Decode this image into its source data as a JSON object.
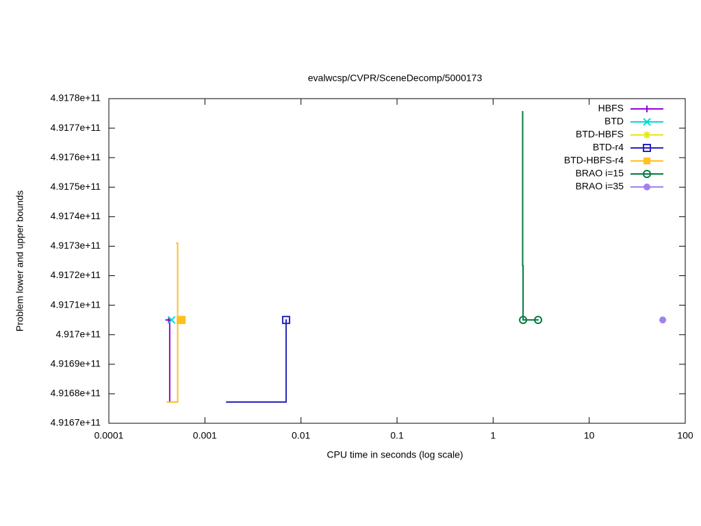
{
  "chart_data": {
    "type": "line",
    "title": "evalwcsp/CVPR/SceneDecomp/5000173",
    "x_label": "CPU time in seconds (log scale)",
    "y_label": "Problem lower and upper bounds",
    "log_x": true,
    "legend": "top-right",
    "xlim": [
      0.0001,
      100
    ],
    "xticks": [
      0.0001,
      0.001,
      0.01,
      0.1,
      1,
      10,
      100
    ],
    "ylim": [
      491670000000,
      491780000000
    ],
    "yticks": [
      {
        "value": 491670000000,
        "label": "4.9167e+11"
      },
      {
        "value": 491680000000,
        "label": "4.9168e+11"
      },
      {
        "value": 491690000000,
        "label": "4.9169e+11"
      },
      {
        "value": 491700000000,
        "label": "4.917e+11"
      },
      {
        "value": 491710000000,
        "label": "4.9171e+11"
      },
      {
        "value": 491720000000,
        "label": "4.9172e+11"
      },
      {
        "value": 491730000000,
        "label": "4.9173e+11"
      },
      {
        "value": 491740000000,
        "label": "4.9174e+11"
      },
      {
        "value": 491750000000,
        "label": "4.9175e+11"
      },
      {
        "value": 491760000000,
        "label": "4.9176e+11"
      },
      {
        "value": 491770000000,
        "label": "4.9177e+11"
      },
      {
        "value": 491780000000,
        "label": "4.9178e+11"
      }
    ],
    "series": [
      {
        "name": "HBFS",
        "color": "#9400d3",
        "marker": "plus",
        "x": [
          0.0004,
          0.00043,
          0.00043
        ],
        "y": [
          491677200000,
          491677200000,
          491705000000
        ],
        "marker_x": [
          0.00042
        ],
        "marker_y": [
          491705000000
        ]
      },
      {
        "name": "BTD",
        "color": "#00d8d8",
        "marker": "cross",
        "x": [],
        "y": [],
        "marker_x": [
          0.00045
        ],
        "marker_y": [
          491705000000
        ]
      },
      {
        "name": "BTD-HBFS",
        "color": "#e6e61a",
        "marker": "star",
        "x": [],
        "y": [],
        "marker_x": [
          0.00055
        ],
        "marker_y": [
          491705000000
        ]
      },
      {
        "name": "BTD-r4",
        "color": "#2222bb",
        "marker": "square-open",
        "x": [
          0.00166,
          0.007,
          0.007
        ],
        "y": [
          491677200000,
          491677200000,
          491705000000
        ],
        "marker_x": [
          0.007
        ],
        "marker_y": [
          491705000000
        ]
      },
      {
        "name": "BTD-HBFS-r4",
        "color": "#ffc020",
        "marker": "square-filled",
        "x": [
          0.0004,
          0.00052,
          0.00052,
          0.0005
        ],
        "y": [
          491677200000,
          491677200000,
          491731000000,
          491731000000
        ],
        "marker_x": [
          0.00056
        ],
        "marker_y": [
          491705000000
        ]
      },
      {
        "name": "BRAO i=15",
        "color": "#007a3d",
        "marker": "circle-open",
        "x": [
          2.03,
          2.03,
          2.05,
          2.05,
          2.94
        ],
        "y": [
          491775800000,
          491723400000,
          491723400000,
          491705000000,
          491705000000
        ],
        "marker_x": [
          2.05,
          2.94
        ],
        "marker_y": [
          491705000000,
          491705000000
        ]
      },
      {
        "name": "BRAO i=35",
        "color": "#a080f0",
        "marker": "circle-filled",
        "x": [],
        "y": [],
        "marker_x": [
          58.3
        ],
        "marker_y": [
          491705000000
        ]
      }
    ]
  }
}
